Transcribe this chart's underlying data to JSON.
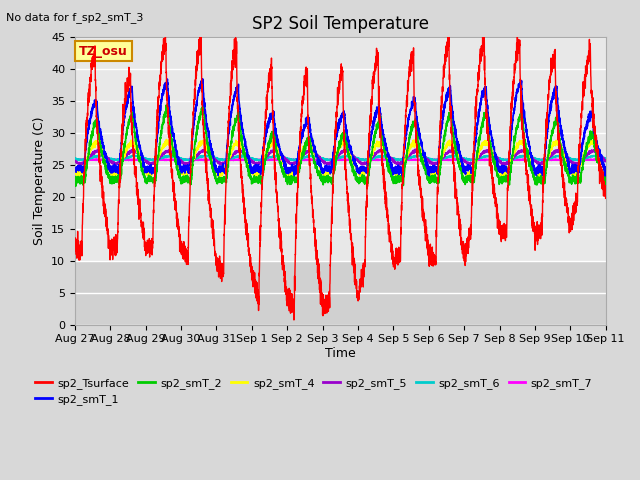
{
  "title": "SP2 Soil Temperature",
  "subtitle": "No data for f_sp2_smT_3",
  "xlabel": "Time",
  "ylabel": "Soil Temperature (C)",
  "ylim": [
    0,
    45
  ],
  "n_days": 15,
  "x_tick_labels": [
    "Aug 27",
    "Aug 28",
    "Aug 29",
    "Aug 30",
    "Aug 31",
    "Sep 1",
    "Sep 2",
    "Sep 3",
    "Sep 4",
    "Sep 5",
    "Sep 6",
    "Sep 7",
    "Sep 8",
    "Sep 9",
    "Sep 10",
    "Sep 11"
  ],
  "legend_entries": [
    {
      "label": "sp2_Tsurface",
      "color": "#FF0000"
    },
    {
      "label": "sp2_smT_1",
      "color": "#0000FF"
    },
    {
      "label": "sp2_smT_2",
      "color": "#00CC00"
    },
    {
      "label": "sp2_smT_4",
      "color": "#FFFF00"
    },
    {
      "label": "sp2_smT_5",
      "color": "#9900CC"
    },
    {
      "label": "sp2_smT_6",
      "color": "#00CCCC"
    },
    {
      "label": "sp2_smT_7",
      "color": "#FF00FF"
    }
  ],
  "tz_label": "TZ_osu",
  "tz_box_facecolor": "#FFFF99",
  "tz_box_edgecolor": "#CC8800",
  "background_color": "#D8D8D8",
  "plot_bg_color": "#E8E8E8",
  "plot_bg_bottom_color": "#D0D0D0",
  "grid_color": "#FFFFFF",
  "title_fontsize": 12,
  "axis_label_fontsize": 9,
  "tick_fontsize": 8
}
